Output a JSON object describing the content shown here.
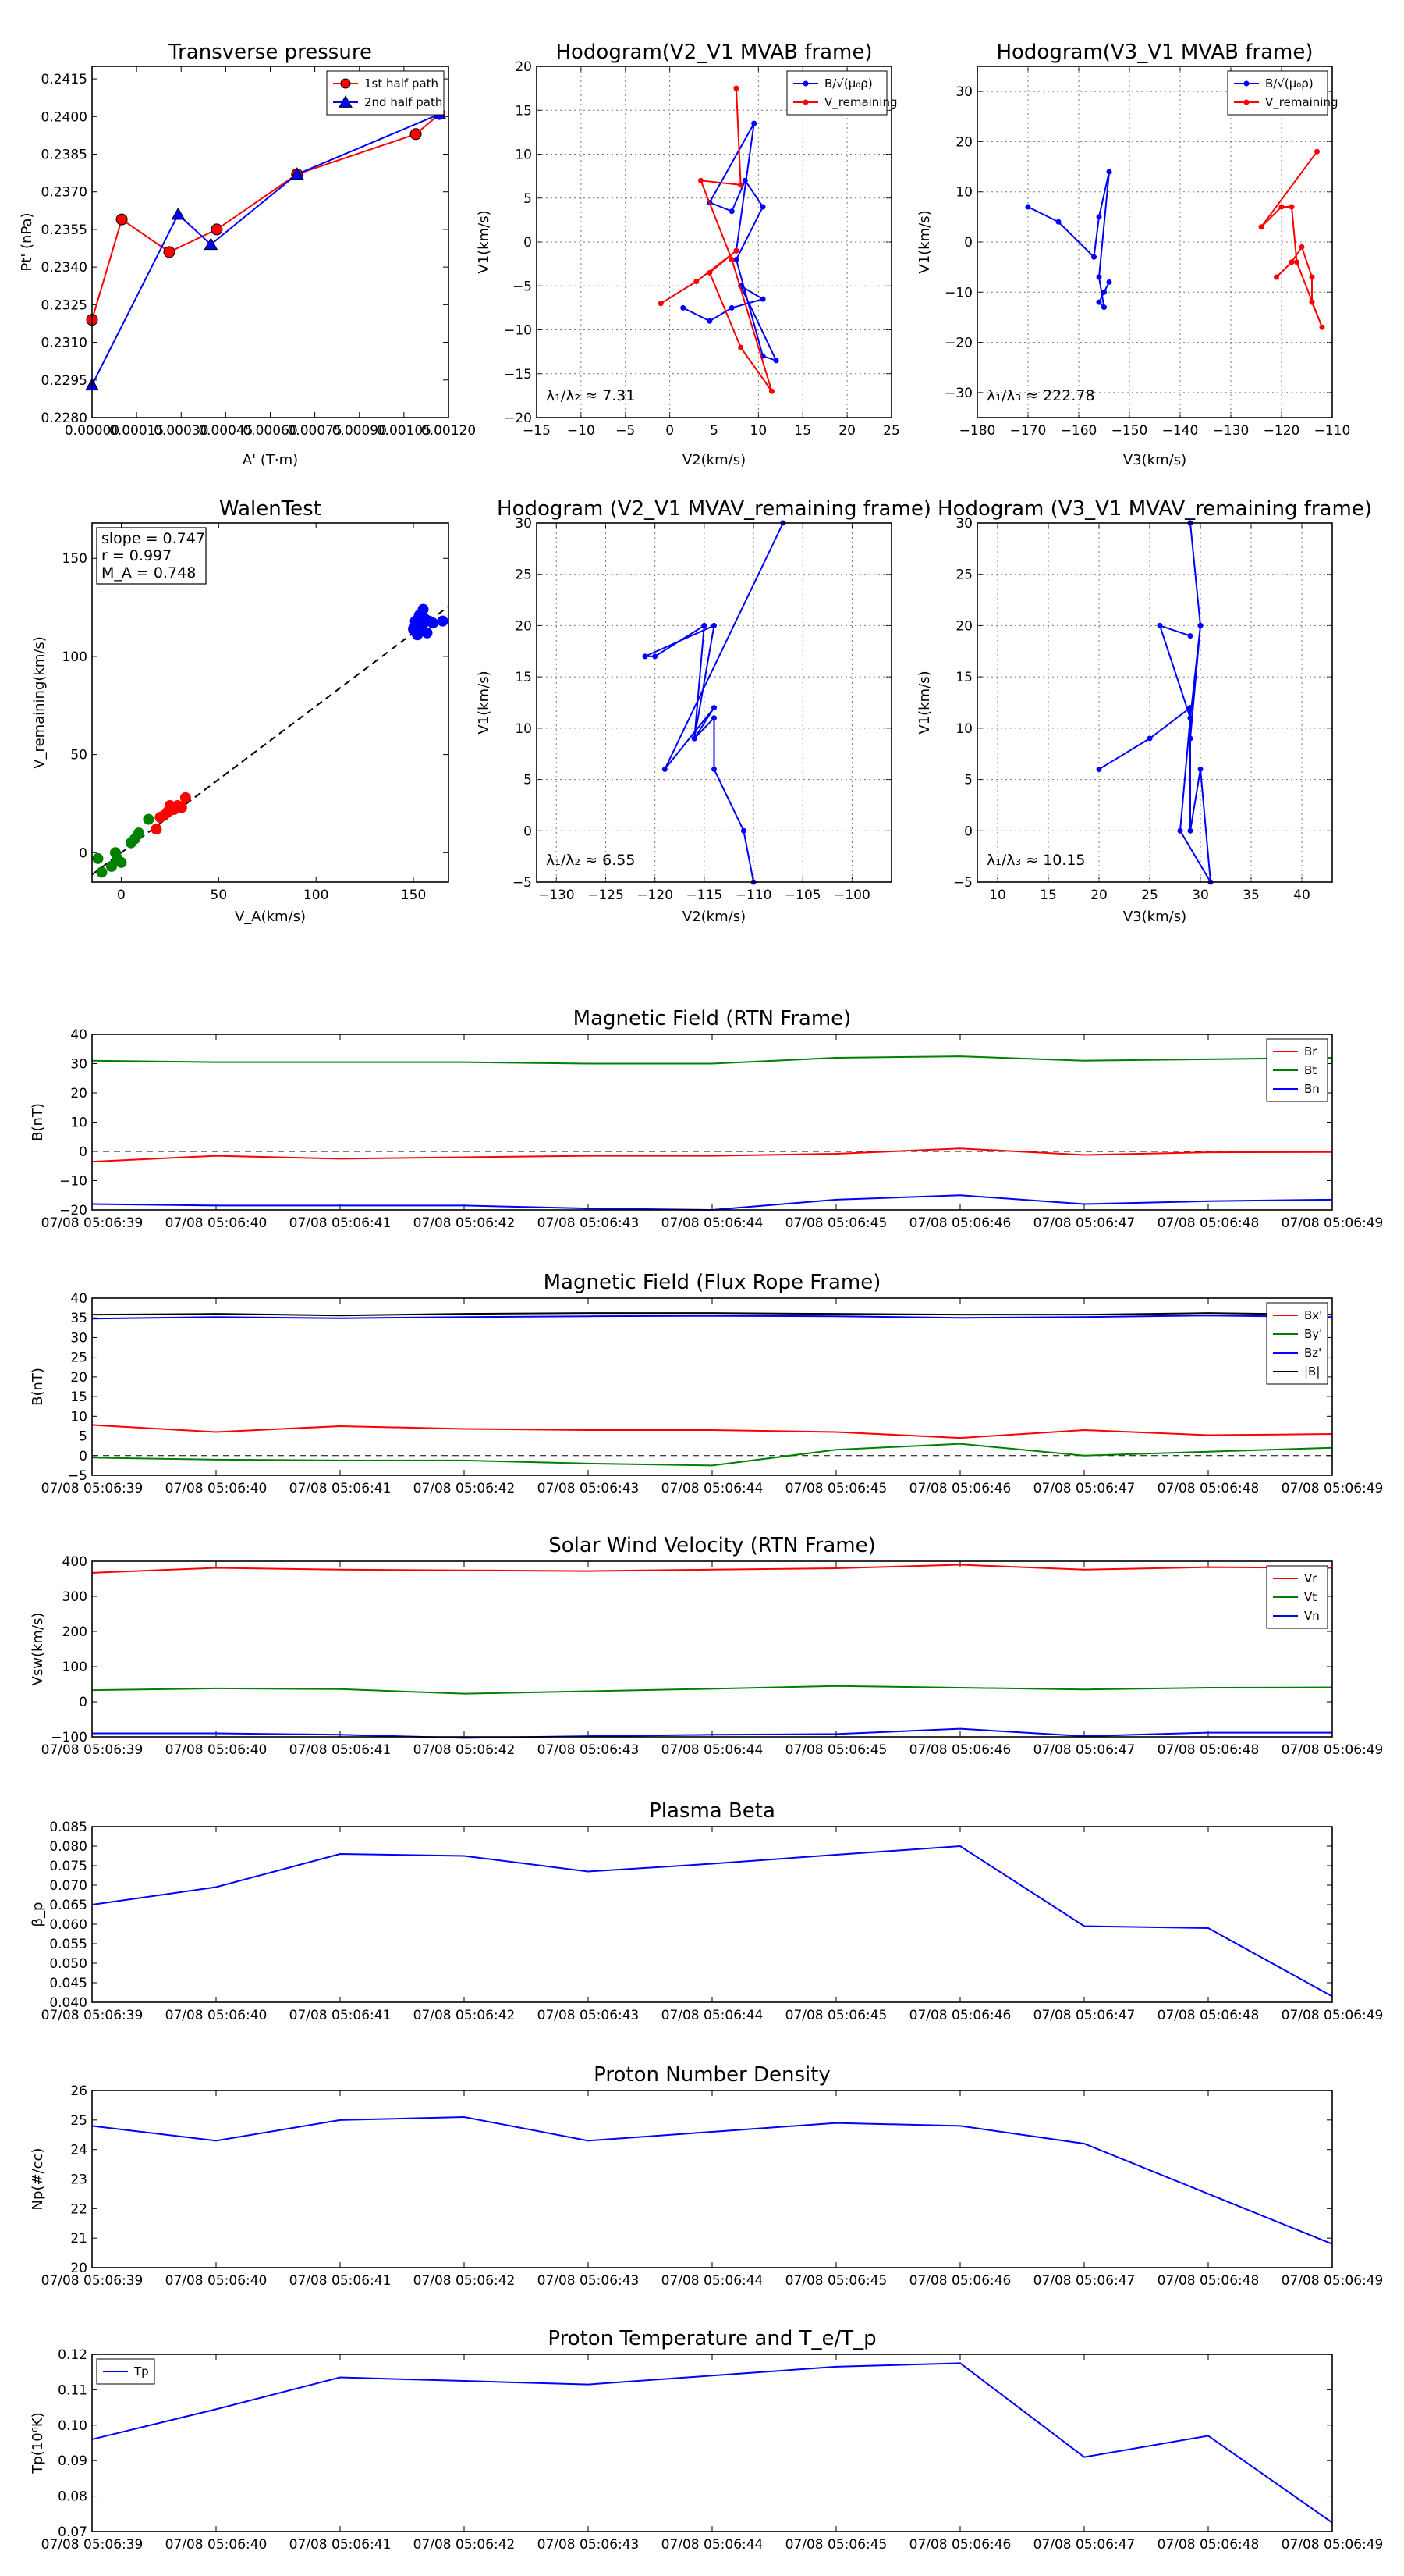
{
  "colors": {
    "red": "#ff0000",
    "green": "#008000",
    "blue": "#0000ff",
    "black": "#000000",
    "dark_red": "#cc0000",
    "frame": "#000000"
  },
  "chart_data": [
    {
      "id": "tp",
      "type": "line",
      "title": "Transverse pressure",
      "xlabel": "A' (T·m)",
      "ylabel": "Pt' (nPa)",
      "xlim": [
        0,
        0.0012
      ],
      "ylim": [
        0.228,
        0.242
      ],
      "xticks": [
        0,
        0.00015,
        0.0003,
        0.00045,
        0.0006,
        0.00075,
        0.0009,
        0.00105,
        0.0012
      ],
      "xticklabels": [
        "0.00000",
        "0.00015",
        "0.00030",
        "0.00045",
        "0.00060",
        "0.00075",
        "0.00090",
        "0.00105",
        "0.00120"
      ],
      "yticks": [
        0.228,
        0.2295,
        0.231,
        0.2325,
        0.234,
        0.2355,
        0.237,
        0.2385,
        0.24,
        0.2415
      ],
      "yticklabels": [
        "0.2280",
        "0.2295",
        "0.2310",
        "0.2325",
        "0.2340",
        "0.2355",
        "0.2370",
        "0.2385",
        "0.2400",
        "0.2415"
      ],
      "grid": false,
      "legend": "top-right",
      "series": [
        {
          "name": "1st half path",
          "color": "red",
          "marker": "circle",
          "x": [
            0.0,
            0.0001,
            0.00026,
            0.00042,
            0.00069,
            0.00109,
            0.00117
          ],
          "y": [
            0.2319,
            0.2359,
            0.2346,
            0.2355,
            0.2377,
            0.2393,
            0.2401
          ]
        },
        {
          "name": "2nd half path",
          "color": "blue",
          "marker": "triangle",
          "x": [
            0.0,
            0.00029,
            0.0004,
            0.00069,
            0.00117
          ],
          "y": [
            0.2293,
            0.2361,
            0.2349,
            0.2377,
            0.2401
          ]
        }
      ]
    },
    {
      "id": "h1",
      "type": "line",
      "title": "Hodogram(V2_V1 MVAB frame)",
      "xlabel": "V2(km/s)",
      "ylabel": "V1(km/s)",
      "xlim": [
        -15,
        25
      ],
      "ylim": [
        -20,
        20
      ],
      "xticks": [
        -15,
        -10,
        -5,
        0,
        5,
        10,
        15,
        20,
        25
      ],
      "xticklabels": [
        "−15",
        "−10",
        "−5",
        "0",
        "5",
        "10",
        "15",
        "20",
        "25"
      ],
      "yticks": [
        -20,
        -15,
        -10,
        -5,
        0,
        5,
        10,
        15,
        20
      ],
      "yticklabels": [
        "−20",
        "−15",
        "−10",
        "−5",
        "0",
        "5",
        "10",
        "15",
        "20"
      ],
      "grid": true,
      "legend": "top-right",
      "annotation": "λ₁/λ₂ ≈ 7.31",
      "series": [
        {
          "name": "B/√(μ₀ρ)",
          "color": "blue",
          "marker": "dot",
          "x": [
            1.5,
            4.5,
            7.0,
            10.5,
            8.0,
            12.0,
            10.5,
            7.5,
            10.5,
            8.5,
            7.0,
            4.5,
            9.5,
            7.5
          ],
          "y": [
            -7.5,
            -9.0,
            -7.5,
            -6.5,
            -5.0,
            -13.5,
            -13.0,
            -2.0,
            4.0,
            7.0,
            3.5,
            4.5,
            13.5,
            -1.0
          ]
        },
        {
          "name": "V_remaining",
          "color": "red",
          "marker": "dot",
          "x": [
            -1.0,
            3.0,
            7.5,
            4.5,
            8.0,
            11.5,
            7.0,
            3.5,
            8.0,
            7.5
          ],
          "y": [
            -7.0,
            -4.5,
            -1.0,
            -3.5,
            -12.0,
            -17.0,
            -2.0,
            7.0,
            6.5,
            17.5
          ]
        }
      ]
    },
    {
      "id": "h2",
      "type": "line",
      "title": "Hodogram(V3_V1 MVAB frame)",
      "xlabel": "V3(km/s)",
      "ylabel": "V1(km/s)",
      "xlim": [
        -180,
        -110
      ],
      "ylim": [
        -35,
        35
      ],
      "xticks": [
        -180,
        -170,
        -160,
        -150,
        -140,
        -130,
        -120,
        -110
      ],
      "xticklabels": [
        "−180",
        "−170",
        "−160",
        "−150",
        "−140",
        "−130",
        "−120",
        "−110"
      ],
      "yticks": [
        -30,
        -20,
        -10,
        0,
        10,
        20,
        30
      ],
      "yticklabels": [
        "−30",
        "−20",
        "−10",
        "0",
        "10",
        "20",
        "30"
      ],
      "grid": true,
      "legend": "top-right",
      "annotation": "λ₁/λ₃ ≈ 222.78",
      "series": [
        {
          "name": "B/√(μ₀ρ)",
          "color": "blue",
          "marker": "dot",
          "x": [
            -170,
            -164,
            -157,
            -156,
            -154,
            -156,
            -155,
            -156,
            -154,
            -155
          ],
          "y": [
            7,
            4,
            -3,
            5,
            14,
            -7,
            -13,
            -12,
            -8,
            -10
          ]
        },
        {
          "name": "V_remaining",
          "color": "red",
          "marker": "dot",
          "x": [
            -121,
            -118,
            -116,
            -114,
            -114,
            -112,
            -117,
            -118,
            -120,
            -124,
            -113
          ],
          "y": [
            -7,
            -4,
            -1,
            -7,
            -12,
            -17,
            -4,
            7,
            7,
            3,
            18
          ]
        }
      ]
    },
    {
      "id": "wt",
      "type": "scatter",
      "title": "WalenTest",
      "xlabel": "V_A(km/s)",
      "ylabel": "V_remaining(km/s)",
      "xlim": [
        -15,
        168
      ],
      "ylim": [
        -15,
        168
      ],
      "xticks": [
        0,
        50,
        100,
        150
      ],
      "xticklabels": [
        "0",
        "50",
        "100",
        "150"
      ],
      "yticks": [
        0,
        50,
        100,
        150
      ],
      "yticklabels": [
        "0",
        "50",
        "100",
        "150"
      ],
      "grid": false,
      "textbox": [
        "slope = 0.747",
        "r = 0.997",
        "M_A = 0.748"
      ],
      "fit": {
        "slope": 0.747,
        "intercept": 0,
        "x": [
          -15,
          168
        ]
      },
      "series": [
        {
          "name": "green",
          "color": "green",
          "x": [
            -12,
            -10,
            -5,
            -3,
            -2,
            0,
            5,
            7,
            9,
            14
          ],
          "y": [
            -3,
            -10,
            -7,
            0,
            -3,
            -5,
            5,
            7,
            10,
            17
          ]
        },
        {
          "name": "red",
          "color": "red",
          "x": [
            18,
            20,
            22,
            24,
            25,
            27,
            29,
            31,
            33
          ],
          "y": [
            12,
            18,
            19,
            21,
            24,
            22,
            24,
            23,
            28
          ]
        },
        {
          "name": "blue",
          "color": "blue",
          "x": [
            150,
            151,
            152,
            153,
            153,
            154,
            155,
            156,
            157,
            158,
            160,
            165
          ],
          "y": [
            114,
            118,
            111,
            117,
            121,
            115,
            124,
            119,
            112,
            118,
            117,
            118
          ]
        }
      ]
    },
    {
      "id": "h3",
      "type": "line",
      "title": "Hodogram (V2_V1 MVAV_remaining frame)",
      "xlabel": "V2(km/s)",
      "ylabel": "V1(km/s)",
      "xlim": [
        -132,
        -96
      ],
      "ylim": [
        -5,
        30
      ],
      "xticks": [
        -130,
        -125,
        -120,
        -115,
        -110,
        -105,
        -100
      ],
      "xticklabels": [
        "−130",
        "−125",
        "−120",
        "−115",
        "−110",
        "−105",
        "−100"
      ],
      "yticks": [
        -5,
        0,
        5,
        10,
        15,
        20,
        25,
        30
      ],
      "yticklabels": [
        "−5",
        "0",
        "5",
        "10",
        "15",
        "20",
        "25",
        "30"
      ],
      "grid": true,
      "annotation": "λ₁/λ₂ ≈ 6.55",
      "series": [
        {
          "name": "V",
          "color": "blue",
          "marker": "dot",
          "x": [
            -110,
            -111,
            -114,
            -114,
            -116,
            -116,
            -115,
            -120,
            -121,
            -114,
            -116,
            -114,
            -119,
            -107
          ],
          "y": [
            -5,
            0,
            6,
            11,
            9,
            9,
            20,
            17,
            17,
            20,
            9,
            12,
            6,
            30
          ]
        }
      ]
    },
    {
      "id": "h4",
      "type": "line",
      "title": "Hodogram (V3_V1 MVAV_remaining frame)",
      "xlabel": "V3(km/s)",
      "ylabel": "V1(km/s)",
      "xlim": [
        8,
        43
      ],
      "ylim": [
        -5,
        30
      ],
      "xticks": [
        10,
        15,
        20,
        25,
        30,
        35,
        40
      ],
      "xticklabels": [
        "10",
        "15",
        "20",
        "25",
        "30",
        "35",
        "40"
      ],
      "yticks": [
        -5,
        0,
        5,
        10,
        15,
        20,
        25,
        30
      ],
      "yticklabels": [
        "−5",
        "0",
        "5",
        "10",
        "15",
        "20",
        "25",
        "30"
      ],
      "grid": true,
      "annotation": "λ₁/λ₃ ≈ 10.15",
      "series": [
        {
          "name": "V",
          "color": "blue",
          "marker": "dot",
          "x": [
            20,
            25,
            29,
            29,
            30,
            31,
            28,
            29,
            29,
            30,
            29,
            30,
            29,
            26,
            29
          ],
          "y": [
            6,
            9,
            12,
            0,
            6,
            -5,
            0,
            11,
            9,
            20,
            30,
            20,
            11,
            20,
            19
          ]
        }
      ]
    },
    {
      "id": "mfrtn",
      "type": "line",
      "title": "Magnetic Field (RTN Frame)",
      "ylabel": "B(nT)",
      "ylim": [
        -20,
        40
      ],
      "yticks": [
        -20,
        -10,
        0,
        10,
        20,
        30,
        40
      ],
      "yticklabels": [
        "−20",
        "−10",
        "0",
        "10",
        "20",
        "30",
        "40"
      ],
      "zero_line": true,
      "legend": "top-right",
      "series": [
        {
          "name": "Br",
          "color": "red",
          "values": [
            -3.5,
            -1.5,
            -2.5,
            -2.0,
            -1.5,
            -1.5,
            -0.8,
            1.0,
            -1.2,
            -0.3,
            -0.2
          ]
        },
        {
          "name": "Bt",
          "color": "green",
          "values": [
            31.0,
            30.5,
            30.5,
            30.5,
            30.0,
            30.0,
            32.0,
            32.5,
            31.0,
            31.5,
            32.0
          ]
        },
        {
          "name": "Bn",
          "color": "blue",
          "values": [
            -18,
            -18.5,
            -18.5,
            -18.5,
            -19.5,
            -20,
            -16.5,
            -15,
            -18,
            -17,
            -16.5
          ]
        }
      ]
    },
    {
      "id": "mffr",
      "type": "line",
      "title": "Magnetic Field (Flux Rope Frame)",
      "ylabel": "B(nT)",
      "ylim": [
        -5,
        40
      ],
      "yticks": [
        -5,
        0,
        5,
        10,
        15,
        20,
        25,
        30,
        35,
        40
      ],
      "yticklabels": [
        "−5",
        "0",
        "5",
        "10",
        "15",
        "20",
        "25",
        "30",
        "35",
        "40"
      ],
      "zero_line": true,
      "legend": "top-right",
      "series": [
        {
          "name": "Bx'",
          "color": "red",
          "values": [
            7.8,
            6.0,
            7.5,
            6.8,
            6.5,
            6.5,
            6.0,
            4.5,
            6.5,
            5.2,
            5.5
          ]
        },
        {
          "name": "By'",
          "color": "green",
          "values": [
            -0.5,
            -1.0,
            -1.2,
            -1.2,
            -2.0,
            -2.5,
            1.5,
            3.0,
            0.0,
            1.0,
            2.0
          ]
        },
        {
          "name": "Bz'",
          "color": "blue",
          "values": [
            34.8,
            35.2,
            34.9,
            35.2,
            35.4,
            35.5,
            35.4,
            35.0,
            35.2,
            35.6,
            35.2
          ]
        },
        {
          "name": "|B|",
          "color": "black",
          "values": [
            35.8,
            36.0,
            35.6,
            36.0,
            36.2,
            36.2,
            36.0,
            35.8,
            35.8,
            36.2,
            35.8
          ]
        }
      ]
    },
    {
      "id": "sw",
      "type": "line",
      "title": "Solar Wind Velocity (RTN Frame)",
      "ylabel": "Vsw(km/s)",
      "ylim": [
        -100,
        400
      ],
      "yticks": [
        -100,
        0,
        100,
        200,
        300,
        400
      ],
      "yticklabels": [
        "−100",
        "0",
        "100",
        "200",
        "300",
        "400"
      ],
      "legend": "top-right",
      "series": [
        {
          "name": "Vr",
          "color": "red",
          "values": [
            367,
            381,
            376,
            374,
            372,
            376,
            380,
            390,
            376,
            383,
            381
          ]
        },
        {
          "name": "Vt",
          "color": "green",
          "values": [
            33,
            38,
            36,
            23,
            30,
            37,
            45,
            40,
            35,
            40,
            41
          ]
        },
        {
          "name": "Vn",
          "color": "blue",
          "values": [
            -90,
            -90,
            -94,
            -103,
            -98,
            -94,
            -92,
            -77,
            -98,
            -88,
            -88
          ]
        }
      ]
    },
    {
      "id": "beta",
      "type": "line",
      "title": "Plasma Beta",
      "ylabel": "β_p",
      "ylim": [
        0.04,
        0.085
      ],
      "yticks": [
        0.04,
        0.045,
        0.05,
        0.055,
        0.06,
        0.065,
        0.07,
        0.075,
        0.08,
        0.085
      ],
      "yticklabels": [
        "0.040",
        "0.045",
        "0.050",
        "0.055",
        "0.060",
        "0.065",
        "0.070",
        "0.075",
        "0.080",
        "0.085"
      ],
      "series": [
        {
          "name": "beta",
          "color": "blue",
          "values": [
            0.065,
            0.0695,
            0.078,
            0.0775,
            0.0735,
            0.0755,
            0.0778,
            0.08,
            0.0595,
            0.059,
            0.0415
          ]
        }
      ]
    },
    {
      "id": "np",
      "type": "line",
      "title": "Proton Number Density",
      "ylabel": "Np(#/cc)",
      "ylim": [
        20,
        26
      ],
      "yticks": [
        20,
        21,
        22,
        23,
        24,
        25,
        26
      ],
      "yticklabels": [
        "20",
        "21",
        "22",
        "23",
        "24",
        "25",
        "26"
      ],
      "series": [
        {
          "name": "Np",
          "color": "blue",
          "values": [
            24.8,
            24.3,
            25.0,
            25.1,
            24.3,
            24.6,
            24.9,
            24.8,
            24.2,
            22.5,
            20.8
          ]
        }
      ]
    },
    {
      "id": "tpt",
      "type": "line",
      "title": "Proton Temperature and T_e/T_p",
      "ylabel": "Tp(10⁶K)",
      "ylim": [
        0.07,
        0.12
      ],
      "yticks": [
        0.07,
        0.08,
        0.09,
        0.1,
        0.11,
        0.12
      ],
      "yticklabels": [
        "0.07",
        "0.08",
        "0.09",
        "0.10",
        "0.11",
        "0.12"
      ],
      "legend": "top-left",
      "series": [
        {
          "name": "Tp",
          "color": "blue",
          "values": [
            0.096,
            0.1045,
            0.1135,
            0.1125,
            0.1115,
            0.114,
            0.1165,
            0.1175,
            0.091,
            0.097,
            0.0725
          ]
        }
      ]
    }
  ],
  "time_labels": [
    "07/08 05:06:39",
    "07/08 05:06:40",
    "07/08 05:06:41",
    "07/08 05:06:42",
    "07/08 05:06:43",
    "07/08 05:06:44",
    "07/08 05:06:45",
    "07/08 05:06:46",
    "07/08 05:06:47",
    "07/08 05:06:48",
    "07/08 05:06:49"
  ]
}
